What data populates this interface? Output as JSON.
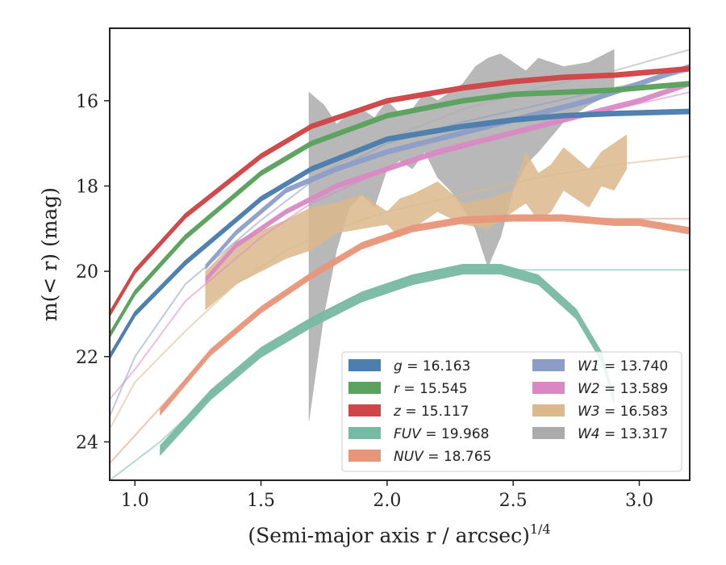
{
  "chart_data": {
    "type": "line",
    "xlabel": "(Semi-major axis r / arcsec)",
    "xlabel_superscript": "1/4",
    "ylabel": "m(< r) (mag)",
    "xlim": [
      0.9,
      3.2
    ],
    "ylim": [
      24.9,
      14.3
    ],
    "y_inverted": true,
    "grid": false,
    "legend_placement": "lower-right",
    "x_ticks": [
      "1.0",
      "1.5",
      "2.0",
      "2.5",
      "3.0"
    ],
    "y_ticks": [
      "16",
      "18",
      "20",
      "22",
      "24"
    ],
    "series": [
      {
        "name": "g",
        "value": "16.163",
        "color": "#4c7eae",
        "band_x": [
          0.9,
          1.0,
          1.2,
          1.5,
          1.7,
          2.0,
          2.3,
          2.5,
          2.7,
          2.9,
          3.2
        ],
        "band_y": [
          22.0,
          21.0,
          19.8,
          18.3,
          17.6,
          16.9,
          16.6,
          16.45,
          16.35,
          16.3,
          16.25
        ],
        "band_half_width": 0.05,
        "fit_y": [
          22.0,
          21.0,
          19.8,
          18.3,
          17.6,
          16.9,
          16.6,
          16.45,
          16.35,
          16.3,
          16.25
        ]
      },
      {
        "name": "r",
        "value": "15.545",
        "color": "#5ba25e",
        "band_x": [
          0.9,
          1.0,
          1.2,
          1.5,
          1.7,
          2.0,
          2.3,
          2.5,
          2.7,
          2.9,
          3.2
        ],
        "band_y": [
          21.5,
          20.5,
          19.2,
          17.7,
          17.0,
          16.35,
          16.0,
          15.85,
          15.8,
          15.75,
          15.6
        ],
        "band_half_width": 0.05,
        "fit_y": [
          21.5,
          20.5,
          19.2,
          17.7,
          17.0,
          16.35,
          16.0,
          15.85,
          15.8,
          15.75,
          15.6
        ]
      },
      {
        "name": "z",
        "value": "15.117",
        "color": "#d04648",
        "band_x": [
          0.9,
          1.0,
          1.2,
          1.5,
          1.7,
          2.0,
          2.3,
          2.5,
          2.7,
          2.9,
          3.2
        ],
        "band_y": [
          21.0,
          20.0,
          18.7,
          17.3,
          16.6,
          16.0,
          15.7,
          15.55,
          15.45,
          15.4,
          15.25
        ],
        "band_half_width": 0.05,
        "fit_y": [
          21.0,
          20.0,
          18.7,
          17.3,
          16.6,
          16.0,
          15.7,
          15.55,
          15.45,
          15.4,
          15.25
        ]
      },
      {
        "name": "FUV",
        "value": "19.968",
        "color": "#78b9a3",
        "band_x": [
          1.1,
          1.3,
          1.5,
          1.7,
          1.9,
          2.1,
          2.3,
          2.45,
          2.6,
          2.75,
          2.85,
          2.9
        ],
        "band_y": [
          24.2,
          22.9,
          21.9,
          21.2,
          20.6,
          20.2,
          19.95,
          19.95,
          20.2,
          21.0,
          22.0,
          23.0
        ],
        "band_half_width": 0.12,
        "fit_x": [
          0.9,
          1.1,
          1.3,
          1.5,
          1.7,
          1.9,
          2.1,
          2.2,
          2.5,
          2.8,
          3.2
        ],
        "fit_y": [
          24.9,
          24.0,
          22.9,
          21.9,
          21.1,
          20.5,
          20.1,
          19.98,
          19.968,
          19.968,
          19.968
        ]
      },
      {
        "name": "NUV",
        "value": "18.765",
        "color": "#e8967a",
        "band_x": [
          1.1,
          1.3,
          1.5,
          1.7,
          1.9,
          2.1,
          2.3,
          2.5,
          2.7,
          2.9,
          3.0,
          3.2
        ],
        "band_y": [
          23.3,
          21.9,
          20.9,
          20.1,
          19.4,
          19.0,
          18.8,
          18.75,
          18.75,
          18.85,
          18.85,
          19.05
        ],
        "band_half_width": 0.08,
        "fit_x": [
          0.9,
          1.1,
          1.3,
          1.5,
          1.7,
          1.9,
          2.1,
          2.3,
          2.6,
          2.9,
          3.2
        ],
        "fit_y": [
          24.5,
          23.2,
          21.9,
          20.9,
          20.1,
          19.4,
          19.0,
          18.8,
          18.765,
          18.765,
          18.765
        ]
      },
      {
        "name": "W1",
        "value": "13.740",
        "color": "#8c9dc8",
        "band_x": [
          1.28,
          1.4,
          1.6,
          1.8,
          2.0,
          2.2,
          2.4,
          2.6,
          2.8,
          3.0,
          3.2
        ],
        "band_y": [
          19.9,
          19.1,
          18.1,
          17.6,
          17.2,
          16.9,
          16.6,
          16.3,
          16.0,
          15.6,
          15.2
        ],
        "band_half_width": 0.06,
        "fit_x": [
          0.9,
          1.0,
          1.2,
          1.5,
          1.7,
          2.0,
          2.3,
          2.6,
          2.9,
          3.2
        ],
        "fit_y": [
          23.4,
          22.0,
          20.3,
          18.8,
          17.9,
          17.0,
          16.5,
          16.1,
          15.7,
          15.3
        ]
      },
      {
        "name": "W2",
        "value": "13.589",
        "color": "#da88c4",
        "band_x": [
          1.28,
          1.4,
          1.6,
          1.8,
          2.0,
          2.2,
          2.4,
          2.6,
          2.8,
          3.0,
          3.2
        ],
        "band_y": [
          20.2,
          19.4,
          18.6,
          18.0,
          17.6,
          17.2,
          16.9,
          16.6,
          16.3,
          16.0,
          15.6
        ],
        "band_half_width": 0.06,
        "fit_x": [
          0.9,
          1.0,
          1.2,
          1.5,
          1.7,
          2.0,
          2.3,
          2.6,
          2.9,
          3.2
        ],
        "fit_y": [
          23.0,
          22.3,
          20.7,
          19.2,
          18.4,
          17.6,
          17.1,
          16.6,
          16.2,
          15.8
        ]
      },
      {
        "name": "W3",
        "value": "16.583",
        "color": "#dbb98b",
        "band_x": [
          1.28,
          1.4,
          1.6,
          1.7,
          1.8,
          1.9,
          2.0,
          2.05,
          2.1,
          2.2,
          2.3,
          2.4,
          2.5,
          2.55,
          2.6,
          2.65,
          2.7,
          2.8,
          2.85,
          2.9,
          2.95
        ],
        "band_upper": [
          20.0,
          19.3,
          18.8,
          18.5,
          18.4,
          18.2,
          18.6,
          18.3,
          18.2,
          17.9,
          18.4,
          18.3,
          18.1,
          17.2,
          17.7,
          17.5,
          17.1,
          17.6,
          17.2,
          17.0,
          16.8
        ],
        "band_lower": [
          20.9,
          20.3,
          19.7,
          19.5,
          19.1,
          19.0,
          18.9,
          19.2,
          19.0,
          18.6,
          18.9,
          19.0,
          18.6,
          18.4,
          18.8,
          18.6,
          18.1,
          18.5,
          18.0,
          18.1,
          17.6
        ],
        "fit_x": [
          0.9,
          1.0,
          1.2,
          1.4,
          1.6,
          1.8,
          2.0,
          2.3,
          2.6,
          2.9,
          3.2
        ],
        "fit_y": [
          23.7,
          22.6,
          21.4,
          20.3,
          19.5,
          19.0,
          18.6,
          18.2,
          17.8,
          17.5,
          17.3
        ]
      },
      {
        "name": "W4",
        "value": "13.317",
        "color": "#ababab",
        "band_x": [
          1.69,
          1.75,
          1.8,
          1.85,
          1.9,
          1.95,
          2.0,
          2.05,
          2.1,
          2.15,
          2.2,
          2.25,
          2.3,
          2.35,
          2.4,
          2.45,
          2.5,
          2.55,
          2.6,
          2.7,
          2.8,
          2.9
        ],
        "band_upper": [
          15.8,
          16.1,
          16.55,
          16.3,
          16.2,
          16.4,
          16.0,
          16.3,
          16.2,
          15.8,
          16.0,
          15.8,
          15.6,
          15.2,
          15.0,
          14.9,
          15.1,
          15.3,
          15.0,
          15.2,
          15.1,
          14.8
        ],
        "band_lower": [
          23.5,
          21.0,
          19.5,
          18.5,
          18.2,
          18.5,
          17.6,
          17.4,
          17.6,
          17.2,
          17.8,
          18.1,
          18.5,
          19.0,
          19.9,
          19.2,
          18.1,
          17.5,
          17.2,
          16.5,
          16.1,
          15.8
        ],
        "fit_x": [
          1.7,
          2.0,
          2.3,
          2.6,
          2.9,
          3.2
        ],
        "fit_y": [
          17.8,
          16.9,
          16.2,
          15.7,
          15.3,
          14.8
        ]
      }
    ]
  }
}
